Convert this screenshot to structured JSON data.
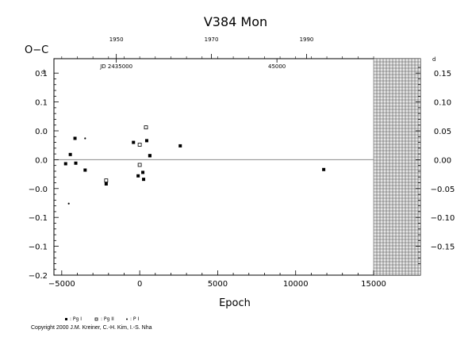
{
  "chart_data": {
    "type": "scatter",
    "title": "V384  Mon",
    "ylabel": "O−C",
    "ylabel_superscript": "d",
    "xlabel": "Epoch",
    "xlim": [
      -5500,
      18000
    ],
    "ylim": [
      -0.2,
      0.175
    ],
    "x_ticks": [
      "−5000",
      "0",
      "5000",
      "10000",
      "15000"
    ],
    "x_tick_values": [
      -5000,
      0,
      5000,
      10000,
      15000
    ],
    "y_left_ticks": [
      "−0.2",
      "−0.1",
      "−0.1",
      "−0.0",
      "0.0",
      "0.0",
      "0.1",
      "0.1"
    ],
    "y_left_tick_values": [
      -0.2,
      -0.15,
      -0.1,
      -0.05,
      0.0,
      0.05,
      0.1,
      0.15
    ],
    "y_right_ticks": [
      "−0.15",
      "−0.10",
      "−0.05",
      "0.00",
      "0.05",
      "0.10",
      "0.15"
    ],
    "y_right_tick_values": [
      -0.15,
      -0.1,
      -0.05,
      0.0,
      0.05,
      0.1,
      0.15
    ],
    "y_right_superscript": "d",
    "top_year_ticks": [
      "1950",
      "1970",
      "1990"
    ],
    "top_year_positions": [
      -1500,
      4600,
      10700
    ],
    "top_jd_labels": [
      "JD 2435000",
      "45000"
    ],
    "top_jd_positions": [
      -1500,
      8800
    ],
    "hatched_region": [
      15000,
      18000
    ],
    "series": [
      {
        "name": ": Pg I",
        "marker": "filled-square",
        "x": [
          -4750,
          -4450,
          -4150,
          -4100,
          -3500,
          -2150,
          -400,
          -100,
          200,
          250,
          450,
          650,
          650,
          2600,
          11800
        ],
        "y": [
          -0.007,
          0.009,
          0.037,
          -0.006,
          -0.018,
          -0.042,
          0.03,
          -0.028,
          -0.022,
          -0.034,
          0.033,
          0.007,
          0.007,
          0.024,
          -0.017
        ]
      },
      {
        "name": ": Pg II",
        "marker": "open-square",
        "x": [
          -2150,
          0,
          0,
          400
        ],
        "y": [
          -0.036,
          0.026,
          -0.009,
          0.056
        ]
      },
      {
        "name": ": P I",
        "marker": "dot",
        "x": [
          -4550,
          -3500
        ],
        "y": [
          -0.076,
          0.037
        ]
      }
    ]
  },
  "legend": {
    "items": [
      ": Pg I",
      ": Pg II",
      ": P I"
    ]
  },
  "copyright": "Copyright 2000 J.M. Kreiner, C.-H. Kim, I.-S. Nha"
}
